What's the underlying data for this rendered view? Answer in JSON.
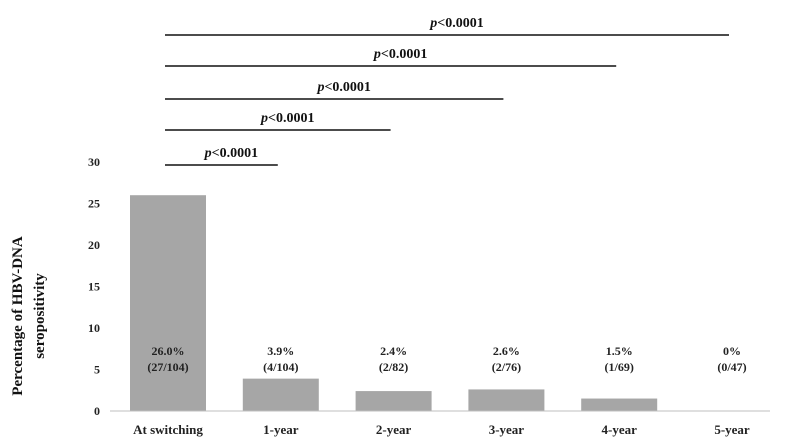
{
  "chart_data": {
    "type": "bar",
    "categories": [
      "At switching",
      "1-year",
      "2-year",
      "3-year",
      "4-year",
      "5-year"
    ],
    "values": [
      26.0,
      3.9,
      2.4,
      2.6,
      1.5,
      0
    ],
    "data_labels": [
      [
        "26.0%",
        "(27/104)"
      ],
      [
        "3.9%",
        "(4/104)"
      ],
      [
        "2.4%",
        "(2/82)"
      ],
      [
        "2.6%",
        "(2/76)"
      ],
      [
        "1.5%",
        "(1/69)"
      ],
      [
        "0%",
        "(0/47)"
      ]
    ],
    "ylabel_lines": [
      "Percentage of HBV-DNA",
      "seropositivity"
    ],
    "ylim": [
      0,
      30
    ],
    "yticks": [
      0,
      5,
      10,
      15,
      20,
      25,
      30
    ],
    "grid": false,
    "bar_color": "#a6a6a6",
    "significance": [
      {
        "from": 0,
        "to": 1,
        "p_italic": "p",
        "rest": "<0.0001"
      },
      {
        "from": 0,
        "to": 2,
        "p_italic": "p",
        "rest": "<0.0001"
      },
      {
        "from": 0,
        "to": 3,
        "p_italic": "p",
        "rest": "<0.0001"
      },
      {
        "from": 0,
        "to": 4,
        "p_italic": "p",
        "rest": "<0.0001"
      },
      {
        "from": 0,
        "to": 5,
        "p_italic": "p",
        "rest": "<0.0001"
      }
    ]
  }
}
